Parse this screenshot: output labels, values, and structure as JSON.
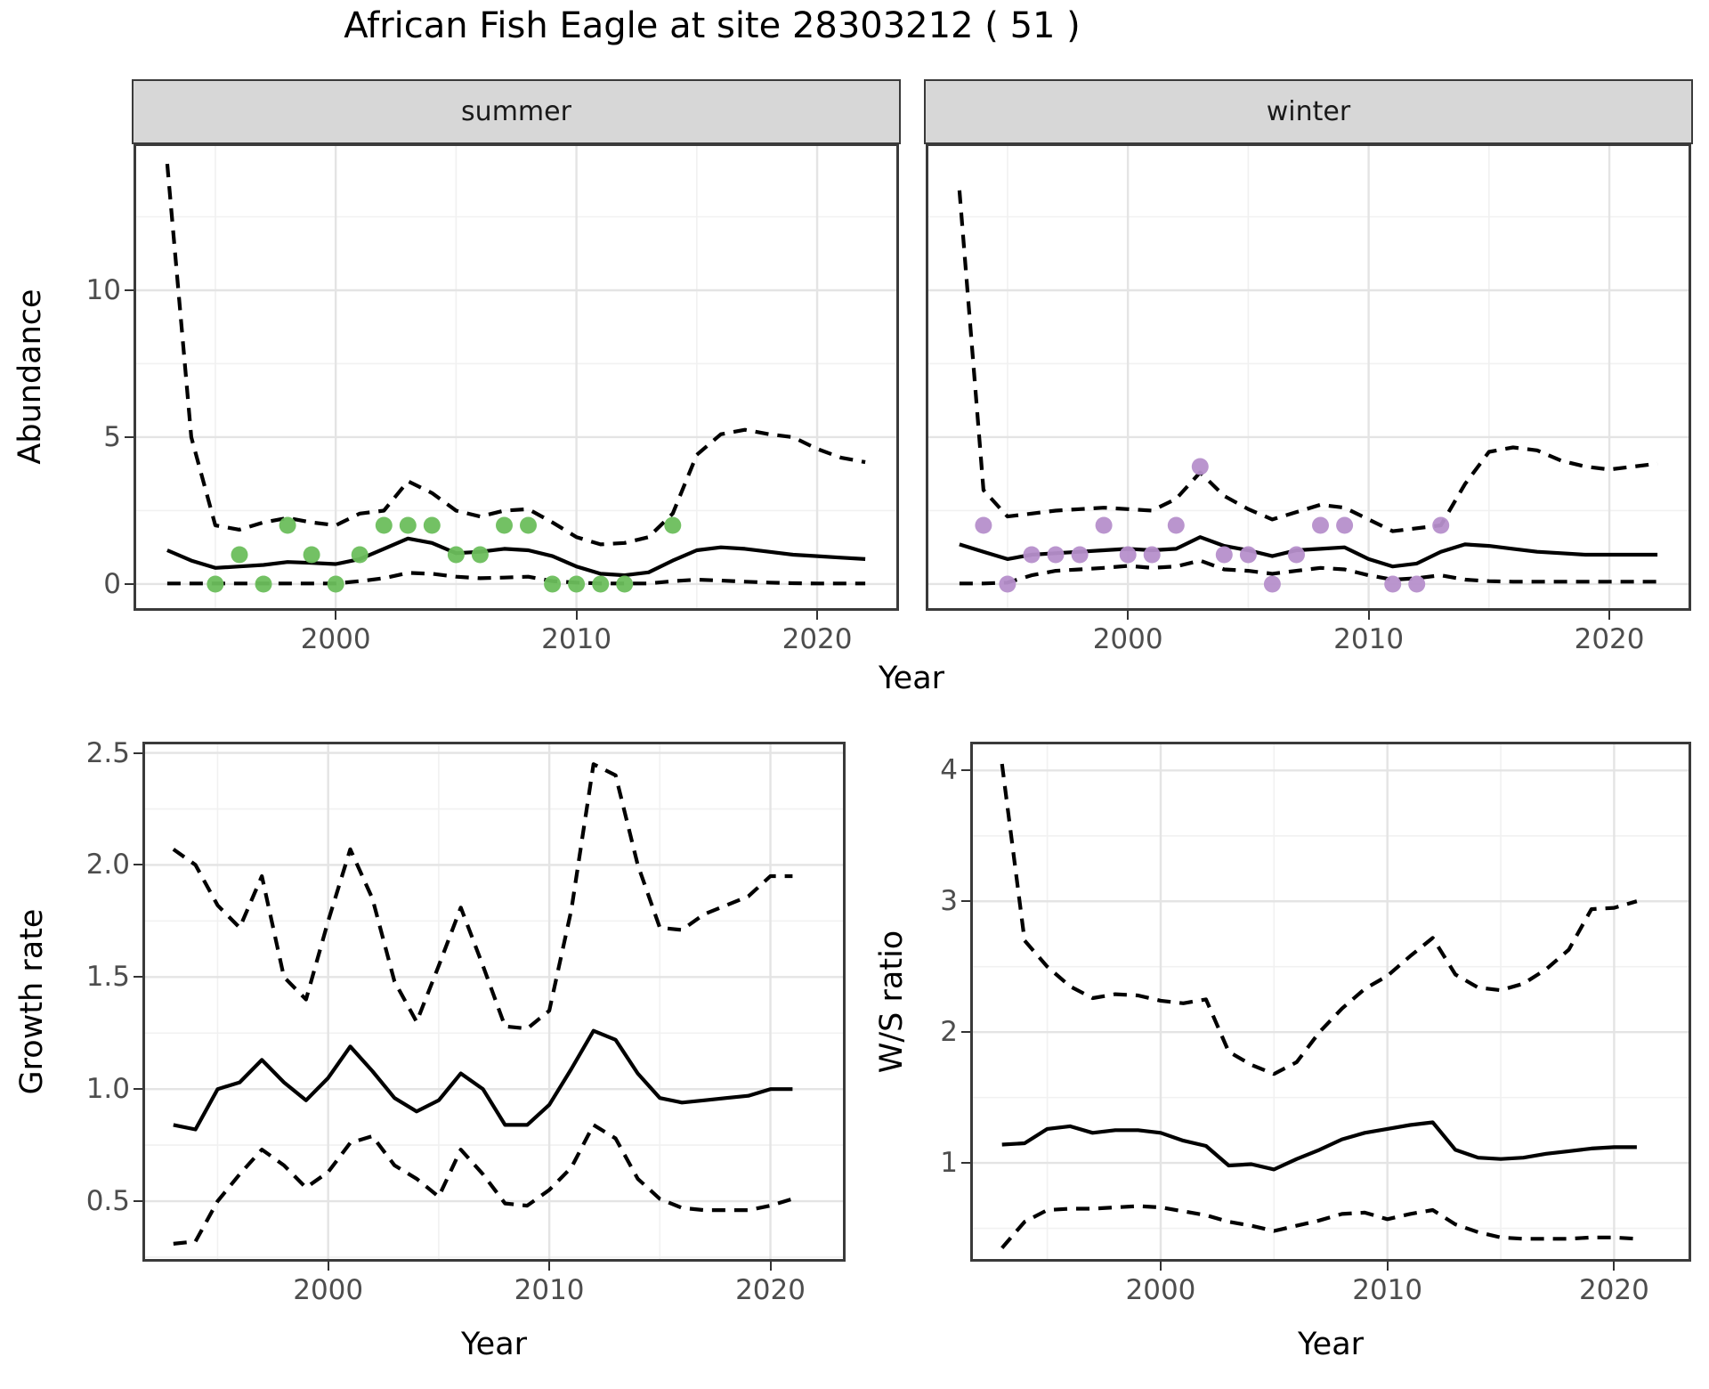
{
  "colors": {
    "summer_points": "#6cbe5c",
    "winter_points": "#b68fcb",
    "line": "#000000",
    "strip_background": "#d7d7d7",
    "panel_border": "#3a3a3a",
    "grid_major": "#e4e4e4",
    "grid_minor": "#f1f1f1",
    "tick_label": "#4d4d4d"
  },
  "chart_data": [
    {
      "id": "abundance",
      "type": "line",
      "title": "African Fish Eagle at site 28303212 ( 51 )",
      "xlabel": "Year",
      "ylabel": "Abundance",
      "xlim": [
        1991.6,
        2023.4
      ],
      "ylim": [
        -0.91,
        15.0
      ],
      "grid": true,
      "legend": "none",
      "x_major_ticks": [
        {
          "value": 2000,
          "label": "2000"
        },
        {
          "value": 2010,
          "label": "2010"
        },
        {
          "value": 2020,
          "label": "2020"
        }
      ],
      "x_minor": [
        1995,
        2005,
        2015
      ],
      "y_major_ticks": [
        {
          "value": 0,
          "label": "0"
        },
        {
          "value": 5,
          "label": "5"
        },
        {
          "value": 10,
          "label": "10"
        }
      ],
      "y_minor": [
        2.5,
        7.5,
        12.5
      ],
      "years": [
        1993,
        1994,
        1995,
        1996,
        1997,
        1998,
        1999,
        2000,
        2001,
        2002,
        2003,
        2004,
        2005,
        2006,
        2007,
        2008,
        2009,
        2010,
        2011,
        2012,
        2013,
        2014,
        2015,
        2016,
        2017,
        2018,
        2019,
        2020,
        2021,
        2022
      ],
      "facets": [
        {
          "label": "summer",
          "point_color": "#6cbe5c",
          "median": [
            1.15,
            0.8,
            0.55,
            0.6,
            0.65,
            0.75,
            0.72,
            0.68,
            0.85,
            1.2,
            1.55,
            1.4,
            1.05,
            1.1,
            1.2,
            1.15,
            0.95,
            0.6,
            0.35,
            0.3,
            0.4,
            0.8,
            1.15,
            1.25,
            1.2,
            1.1,
            1.0,
            0.95,
            0.9,
            0.85
          ],
          "upper_ci": [
            14.3,
            5.0,
            2.0,
            1.85,
            2.1,
            2.25,
            2.1,
            2.0,
            2.4,
            2.5,
            3.5,
            3.1,
            2.5,
            2.3,
            2.5,
            2.55,
            2.1,
            1.6,
            1.35,
            1.4,
            1.6,
            2.4,
            4.4,
            5.1,
            5.25,
            5.1,
            5.0,
            4.6,
            4.3,
            4.15
          ],
          "lower_ci": [
            0.02,
            0.02,
            0.02,
            0.02,
            0.02,
            0.02,
            0.02,
            0.02,
            0.1,
            0.2,
            0.38,
            0.35,
            0.25,
            0.2,
            0.22,
            0.25,
            0.1,
            0.05,
            0.02,
            0.02,
            0.02,
            0.1,
            0.15,
            0.12,
            0.08,
            0.05,
            0.03,
            0.02,
            0.02,
            0.02
          ],
          "obs_x": [
            1995,
            1996,
            1997,
            1998,
            1999,
            2000,
            2001,
            2002,
            2003,
            2004,
            2005,
            2006,
            2007,
            2008,
            2009,
            2010,
            2011,
            2012,
            2014
          ],
          "obs_y": [
            0,
            1,
            0,
            2,
            1,
            0,
            1,
            2,
            2,
            2,
            1,
            1,
            2,
            2,
            0,
            0,
            0,
            0,
            2
          ]
        },
        {
          "label": "winter",
          "point_color": "#b68fcb",
          "median": [
            1.35,
            1.1,
            0.85,
            1.0,
            1.05,
            1.1,
            1.15,
            1.2,
            1.15,
            1.2,
            1.6,
            1.3,
            1.15,
            0.95,
            1.15,
            1.2,
            1.25,
            0.85,
            0.6,
            0.7,
            1.1,
            1.35,
            1.3,
            1.2,
            1.1,
            1.05,
            1.0,
            1.0,
            1.0,
            1.0
          ],
          "upper_ci": [
            13.4,
            3.2,
            2.3,
            2.4,
            2.5,
            2.55,
            2.6,
            2.55,
            2.5,
            2.9,
            3.8,
            3.0,
            2.55,
            2.2,
            2.45,
            2.7,
            2.6,
            2.2,
            1.8,
            1.9,
            2.0,
            3.4,
            4.5,
            4.65,
            4.55,
            4.2,
            4.0,
            3.9,
            4.0,
            4.1
          ],
          "lower_ci": [
            0.02,
            0.02,
            0.05,
            0.3,
            0.45,
            0.5,
            0.55,
            0.62,
            0.55,
            0.6,
            0.8,
            0.5,
            0.45,
            0.35,
            0.45,
            0.55,
            0.5,
            0.3,
            0.15,
            0.2,
            0.3,
            0.15,
            0.1,
            0.08,
            0.08,
            0.08,
            0.08,
            0.08,
            0.08,
            0.08
          ],
          "obs_x": [
            1994,
            1995,
            1996,
            1997,
            1998,
            1999,
            2000,
            2001,
            2002,
            2003,
            2004,
            2005,
            2006,
            2007,
            2008,
            2009,
            2011,
            2012,
            2013
          ],
          "obs_y": [
            2,
            0,
            1,
            1,
            1,
            2,
            1,
            1,
            2,
            4,
            1,
            1,
            0,
            1,
            2,
            2,
            0,
            0,
            2
          ]
        }
      ]
    },
    {
      "id": "growth_rate",
      "type": "line",
      "xlabel": "Year",
      "ylabel": "Growth rate",
      "xlim": [
        1991.6,
        2023.4
      ],
      "ylim": [
        0.23,
        2.55
      ],
      "grid": true,
      "x_major_ticks": [
        {
          "value": 2000,
          "label": "2000"
        },
        {
          "value": 2010,
          "label": "2010"
        },
        {
          "value": 2020,
          "label": "2020"
        }
      ],
      "x_minor": [
        1995,
        2005,
        2015
      ],
      "y_major_ticks": [
        {
          "value": 0.5,
          "label": "0.5"
        },
        {
          "value": 1.0,
          "label": "1.0"
        },
        {
          "value": 1.5,
          "label": "1.5"
        },
        {
          "value": 2.0,
          "label": "2.0"
        },
        {
          "value": 2.5,
          "label": "2.5"
        }
      ],
      "y_minor": [
        0.25,
        0.75,
        1.25,
        1.75,
        2.25
      ],
      "years": [
        1993,
        1994,
        1995,
        1996,
        1997,
        1998,
        1999,
        2000,
        2001,
        2002,
        2003,
        2004,
        2005,
        2006,
        2007,
        2008,
        2009,
        2010,
        2011,
        2012,
        2013,
        2014,
        2015,
        2016,
        2017,
        2018,
        2019,
        2020,
        2021
      ],
      "median": [
        0.84,
        0.82,
        1.0,
        1.03,
        1.13,
        1.03,
        0.95,
        1.05,
        1.19,
        1.08,
        0.96,
        0.9,
        0.95,
        1.07,
        1.0,
        0.84,
        0.84,
        0.93,
        1.09,
        1.26,
        1.22,
        1.07,
        0.96,
        0.94,
        0.95,
        0.96,
        0.97,
        1.0,
        1.0
      ],
      "upper_ci": [
        2.07,
        2.0,
        1.82,
        1.72,
        1.95,
        1.5,
        1.4,
        1.75,
        2.07,
        1.85,
        1.48,
        1.3,
        1.55,
        1.81,
        1.55,
        1.28,
        1.27,
        1.35,
        1.8,
        2.45,
        2.4,
        2.0,
        1.72,
        1.71,
        1.78,
        1.82,
        1.86,
        1.95,
        1.95
      ],
      "lower_ci": [
        0.31,
        0.32,
        0.5,
        0.62,
        0.73,
        0.66,
        0.56,
        0.63,
        0.76,
        0.79,
        0.66,
        0.6,
        0.52,
        0.73,
        0.62,
        0.49,
        0.48,
        0.55,
        0.65,
        0.84,
        0.78,
        0.6,
        0.51,
        0.47,
        0.46,
        0.46,
        0.46,
        0.48,
        0.51
      ]
    },
    {
      "id": "ws_ratio",
      "type": "line",
      "xlabel": "Year",
      "ylabel": "W/S ratio",
      "xlim": [
        1991.6,
        2023.4
      ],
      "ylim": [
        0.245,
        4.22
      ],
      "grid": true,
      "x_major_ticks": [
        {
          "value": 2000,
          "label": "2000"
        },
        {
          "value": 2010,
          "label": "2010"
        },
        {
          "value": 2020,
          "label": "2020"
        }
      ],
      "x_minor": [
        1995,
        2005,
        2015
      ],
      "y_major_ticks": [
        {
          "value": 1,
          "label": "1"
        },
        {
          "value": 2,
          "label": "2"
        },
        {
          "value": 3,
          "label": "3"
        },
        {
          "value": 4,
          "label": "4"
        }
      ],
      "y_minor": [
        0.5,
        1.5,
        2.5,
        3.5
      ],
      "years": [
        1993,
        1994,
        1995,
        1996,
        1997,
        1998,
        1999,
        2000,
        2001,
        2002,
        2003,
        2004,
        2005,
        2006,
        2007,
        2008,
        2009,
        2010,
        2011,
        2012,
        2013,
        2014,
        2015,
        2016,
        2017,
        2018,
        2019,
        2020,
        2021
      ],
      "median": [
        1.14,
        1.15,
        1.26,
        1.28,
        1.23,
        1.25,
        1.25,
        1.23,
        1.17,
        1.13,
        0.98,
        0.99,
        0.95,
        1.03,
        1.1,
        1.18,
        1.23,
        1.26,
        1.29,
        1.31,
        1.1,
        1.04,
        1.03,
        1.04,
        1.07,
        1.09,
        1.11,
        1.12,
        1.12
      ],
      "upper_ci": [
        4.05,
        2.7,
        2.5,
        2.35,
        2.26,
        2.29,
        2.28,
        2.24,
        2.22,
        2.25,
        1.85,
        1.75,
        1.68,
        1.77,
        2.0,
        2.18,
        2.33,
        2.43,
        2.58,
        2.72,
        2.44,
        2.34,
        2.32,
        2.37,
        2.48,
        2.63,
        2.94,
        2.95,
        3.0
      ],
      "lower_ci": [
        0.35,
        0.55,
        0.64,
        0.65,
        0.65,
        0.66,
        0.67,
        0.66,
        0.63,
        0.6,
        0.55,
        0.52,
        0.48,
        0.52,
        0.56,
        0.61,
        0.62,
        0.57,
        0.61,
        0.64,
        0.53,
        0.47,
        0.43,
        0.42,
        0.42,
        0.42,
        0.43,
        0.43,
        0.42
      ]
    }
  ]
}
